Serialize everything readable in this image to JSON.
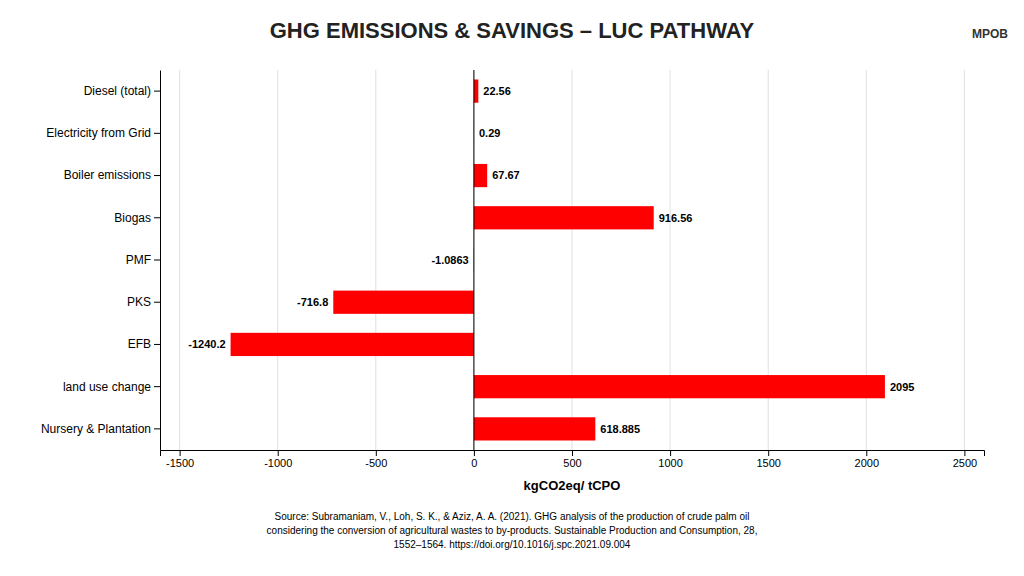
{
  "chart_data": {
    "type": "bar",
    "orientation": "horizontal",
    "title": "GHG EMISSIONS & SAVINGS – LUC PATHWAY",
    "categories": [
      "Nursery & Plantation",
      "land use change",
      "EFB",
      "PKS",
      "PMF",
      "Biogas",
      "Boiler emissions",
      "Electricity from Grid",
      "Diesel (total)"
    ],
    "values": [
      618.885,
      2095,
      -1240.2,
      -716.8,
      -1.0863,
      916.56,
      67.67,
      0.29,
      22.56
    ],
    "color": "#FF0000",
    "xlabel": "kgCO2eq/ tCPO",
    "xlim": [
      -1600,
      2600
    ],
    "xticks": [
      -1500,
      -1000,
      -500,
      0,
      500,
      1000,
      1500,
      2000,
      2500
    ],
    "grid": true,
    "data_labels": true,
    "annotations": [
      "Source: Subramaniam, V., Loh, S. K., & Aziz, A. A. (2021). GHG analysis of the production of crude palm oil\nconsidering the conversion of agricultural wastes to by-products. Sustainable Production and Consumption, 28,\n1552–1564. https://doi.org/10.1016/j.spc.2021.09.004",
      "MPOB"
    ]
  }
}
